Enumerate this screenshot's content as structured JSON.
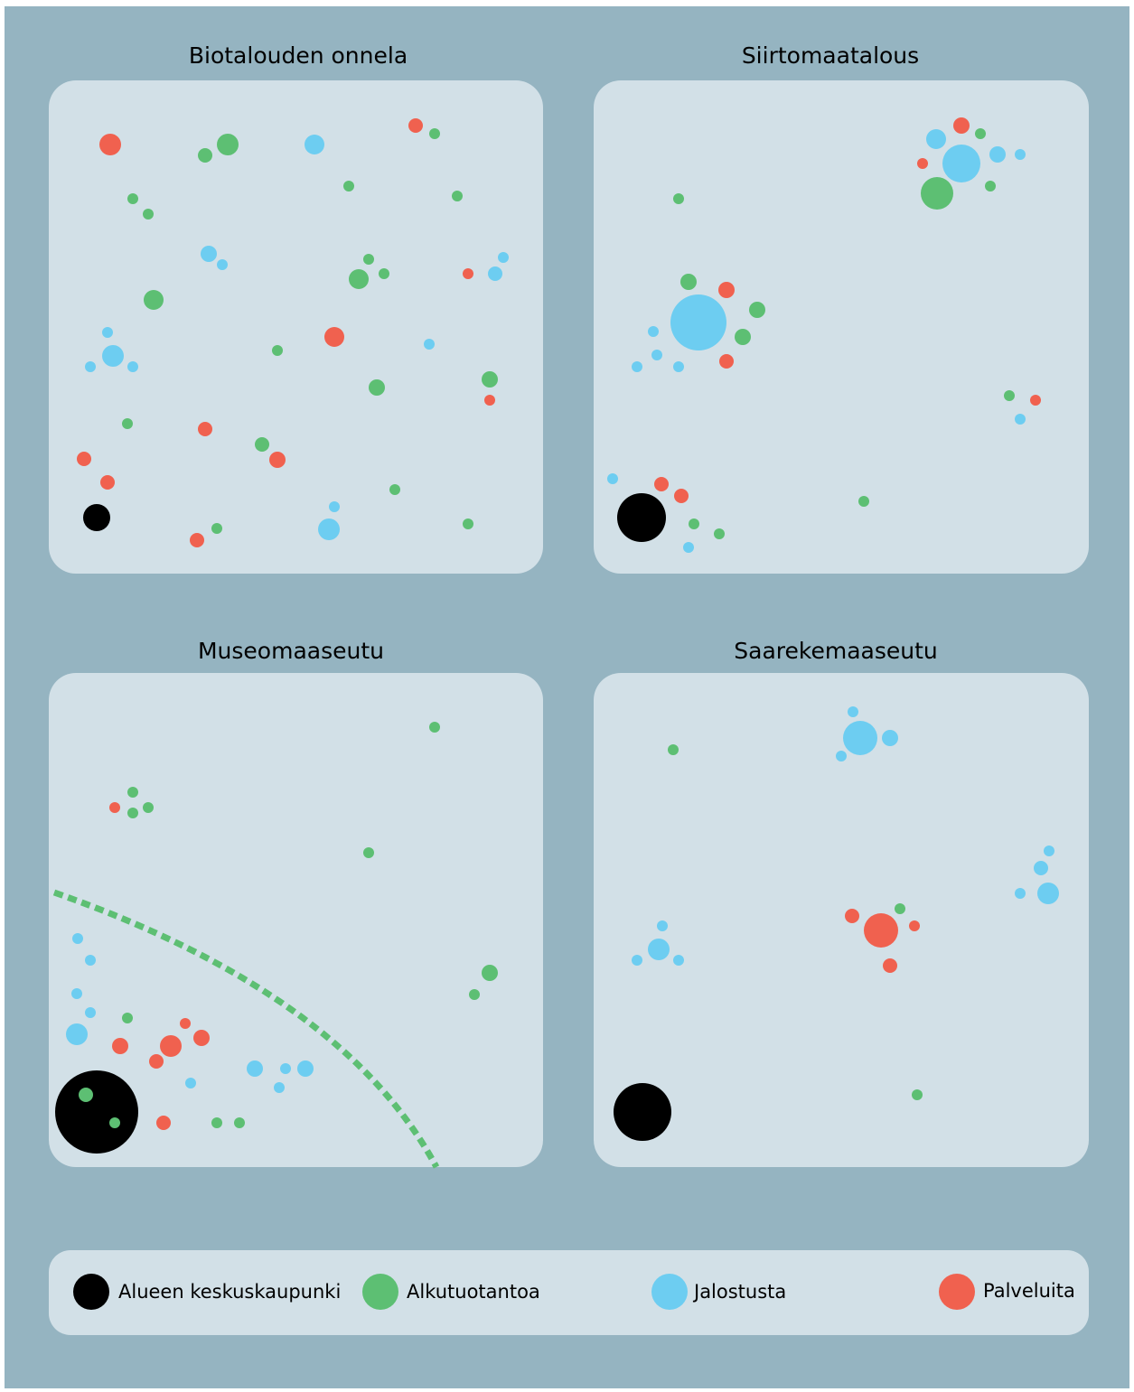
{
  "panels": [
    {
      "title": "Biotalouden onnela"
    },
    {
      "title": "Siirtomaatalous"
    },
    {
      "title": "Museomaaseutu"
    },
    {
      "title": "Saarekemaaseutu"
    }
  ],
  "legend": [
    {
      "label": "Alueen keskuskaupunki"
    },
    {
      "label": "Alkutuotantoa"
    },
    {
      "label": "Jalostusta"
    },
    {
      "label": "Palveluita"
    }
  ]
}
